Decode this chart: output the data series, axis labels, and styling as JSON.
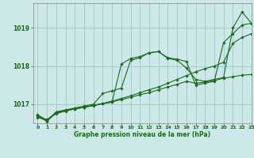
{
  "title": "Graphe pression niveau de la mer (hPa)",
  "background_color": "#cce8e8",
  "grid_color": "#aacccc",
  "line_color": "#1a6b1a",
  "xlim": [
    -0.5,
    23
  ],
  "ylim": [
    1016.5,
    1019.65
  ],
  "yticks": [
    1017,
    1018,
    1019
  ],
  "xticks": [
    0,
    1,
    2,
    3,
    4,
    5,
    6,
    7,
    8,
    9,
    10,
    11,
    12,
    13,
    14,
    15,
    16,
    17,
    18,
    19,
    20,
    21,
    22,
    23
  ],
  "series": [
    {
      "x": [
        0,
        1,
        2,
        3,
        4,
        5,
        6,
        7,
        8,
        9,
        10,
        11,
        12,
        13,
        14,
        15,
        16,
        17,
        18,
        19,
        20,
        21,
        22,
        23
      ],
      "y": [
        1016.65,
        1016.6,
        1016.75,
        1016.82,
        1016.88,
        1016.92,
        1016.97,
        1017.02,
        1017.08,
        1017.15,
        1017.22,
        1017.3,
        1017.38,
        1017.45,
        1017.55,
        1017.65,
        1017.75,
        1017.85,
        1017.93,
        1018.0,
        1018.1,
        1018.6,
        1018.75,
        1018.85
      ]
    },
    {
      "x": [
        0,
        1,
        2,
        3,
        4,
        5,
        6,
        7,
        8,
        9,
        10,
        11,
        12,
        13,
        14,
        15,
        16,
        17,
        18,
        19,
        20,
        21,
        22,
        23
      ],
      "y": [
        1016.68,
        1016.55,
        1016.78,
        1016.83,
        1016.88,
        1016.92,
        1016.97,
        1017.02,
        1017.05,
        1018.05,
        1018.2,
        1018.25,
        1018.35,
        1018.38,
        1018.2,
        1018.15,
        1017.95,
        1017.65,
        1017.6,
        1017.65,
        1017.7,
        1019.0,
        1019.42,
        1019.12
      ]
    },
    {
      "x": [
        0,
        1,
        2,
        3,
        4,
        5,
        6,
        7,
        8,
        9,
        10,
        11,
        12,
        13,
        14,
        15,
        16,
        17,
        18,
        19,
        20,
        21,
        22,
        23
      ],
      "y": [
        1016.72,
        1016.58,
        1016.8,
        1016.85,
        1016.9,
        1016.95,
        1017.0,
        1017.28,
        1017.35,
        1017.42,
        1018.15,
        1018.22,
        1018.35,
        1018.38,
        1018.22,
        1018.18,
        1018.12,
        1017.5,
        1017.55,
        1017.6,
        1018.62,
        1018.85,
        1019.08,
        1019.12
      ]
    },
    {
      "x": [
        0,
        1,
        2,
        3,
        4,
        5,
        6,
        7,
        8,
        9,
        10,
        11,
        12,
        13,
        14,
        15,
        16,
        17,
        18,
        19,
        20,
        21,
        22,
        23
      ],
      "y": [
        1016.7,
        1016.57,
        1016.78,
        1016.83,
        1016.87,
        1016.92,
        1016.96,
        1017.01,
        1017.06,
        1017.12,
        1017.18,
        1017.25,
        1017.3,
        1017.38,
        1017.45,
        1017.52,
        1017.6,
        1017.55,
        1017.58,
        1017.62,
        1017.68,
        1017.72,
        1017.76,
        1017.78
      ]
    }
  ]
}
